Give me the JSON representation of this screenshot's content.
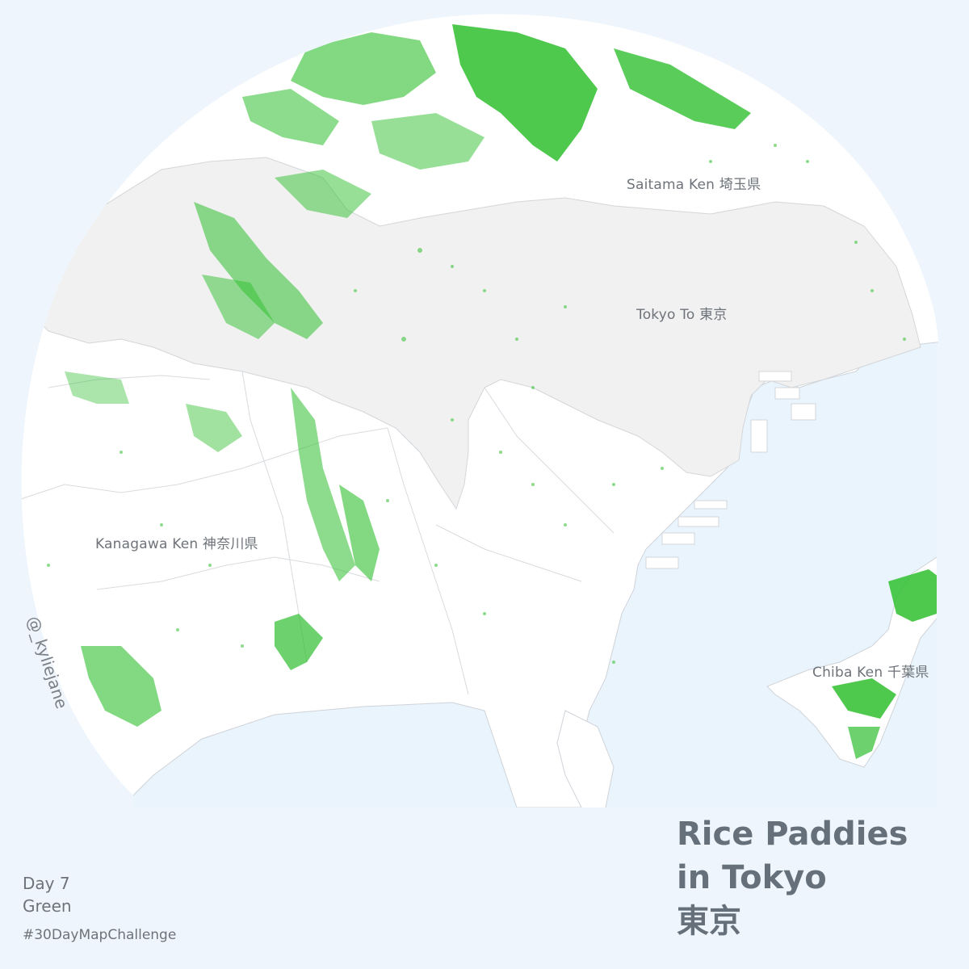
{
  "map": {
    "land_color": "#ffffff",
    "tokyo_fill": "#f1f1f1",
    "water_color": "#eaf4fd",
    "border_color": "#cfd3d8",
    "paddy_color": "#2fbf2f",
    "regions": {
      "saitama": "Saitama Ken 埼玉県",
      "tokyo": "Tokyo To 東京",
      "kanagawa": "Kanagawa Ken 神奈川県",
      "chiba": "Chiba Ken 千葉県"
    }
  },
  "credit": "@_kyliejane",
  "title": {
    "line1": "Rice Paddies",
    "line2": "in Tokyo",
    "line3": "東京"
  },
  "footer": {
    "day": "Day 7",
    "theme": "Green",
    "hashtag": "#30DayMapChallenge"
  }
}
